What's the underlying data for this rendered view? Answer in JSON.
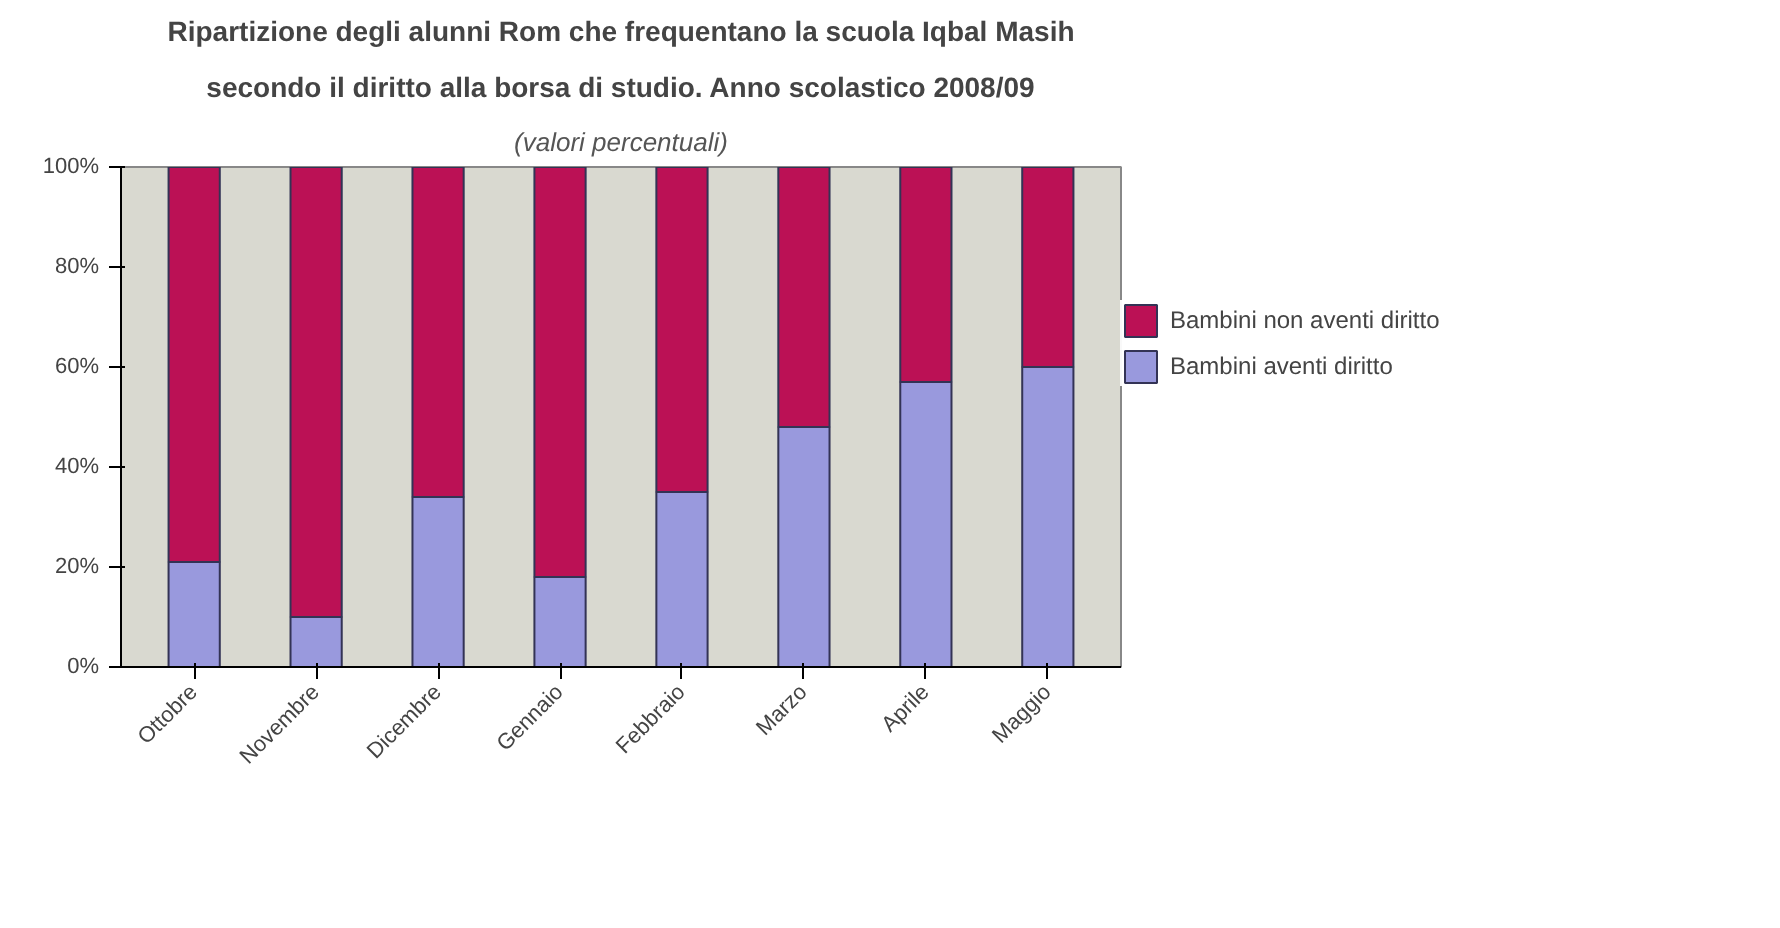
{
  "chart_data": {
    "type": "bar",
    "stacked": true,
    "title": "Ripartizione degli alunni Rom che frequentano la scuola Iqbal Masih",
    "subtitle": "secondo il diritto alla borsa di studio. Anno scolastico 2008/09",
    "annotations": [
      "(valori percentuali)"
    ],
    "categories": [
      "Ottobre",
      "Novembre",
      "Dicembre",
      "Gennaio",
      "Febbraio",
      "Marzo",
      "Aprile",
      "Maggio"
    ],
    "series": [
      {
        "name": "Bambini aventi diritto",
        "color": "#9999dd",
        "values": [
          21,
          10,
          34,
          18,
          35,
          48,
          57,
          60
        ]
      },
      {
        "name": "Bambini non aventi diritto",
        "color": "#bb1155",
        "values": [
          79,
          90,
          66,
          82,
          65,
          52,
          43,
          40
        ]
      }
    ],
    "ylim": [
      0,
      100
    ],
    "yticks": [
      {
        "value": 0,
        "label": "0%"
      },
      {
        "value": 20,
        "label": "20%"
      },
      {
        "value": 40,
        "label": "40%"
      },
      {
        "value": 60,
        "label": "60%"
      },
      {
        "value": 80,
        "label": "80%"
      },
      {
        "value": 100,
        "label": "100%"
      }
    ],
    "grid": false,
    "legend": "right"
  }
}
